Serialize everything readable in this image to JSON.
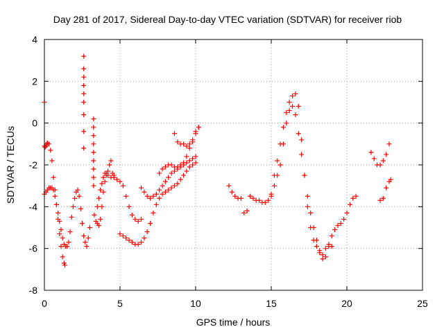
{
  "chart_data": {
    "type": "scatter",
    "title": "Day 281 of 2017, Sidereal Day-to-day VTEC variation (SDTVAR) for receiver riob",
    "xlabel": "GPS time / hours",
    "ylabel": "SDTVAR / TECUs",
    "xlim": [
      0,
      25
    ],
    "ylim": [
      -8,
      4
    ],
    "xticks": [
      0,
      5,
      10,
      15,
      20,
      25
    ],
    "yticks": [
      -8,
      -6,
      -4,
      -2,
      0,
      2,
      4
    ],
    "xtick_labels": [
      "0",
      "5",
      "10",
      "15",
      "20",
      "25"
    ],
    "ytick_labels": [
      "-8",
      "-6",
      "-4",
      "-2",
      "0",
      "2",
      "4"
    ],
    "grid": true,
    "marker": "+",
    "marker_color": "#ff0000",
    "series": [
      {
        "name": "SDTVAR",
        "x": [
          0.0,
          0.05,
          0.1,
          0.15,
          0.2,
          0.3,
          0.4,
          0.5,
          0.6,
          0.7,
          0.8,
          0.9,
          1.0,
          1.1,
          1.2,
          1.3,
          1.35,
          0.0,
          0.1,
          0.2,
          0.3,
          0.4,
          0.5,
          0.6,
          0.7,
          0.8,
          0.9,
          1.0,
          1.1,
          1.2,
          1.3,
          1.4,
          1.5,
          1.6,
          1.7,
          1.8,
          1.9,
          2.0,
          2.1,
          2.2,
          2.3,
          2.4,
          2.5,
          2.6,
          2.7,
          2.8,
          2.9,
          3.0,
          0.0,
          2.6,
          2.6,
          2.6,
          2.6,
          2.6,
          2.6,
          2.6,
          2.6,
          2.6,
          3.25,
          3.25,
          3.25,
          3.25,
          3.25,
          3.25,
          3.25,
          3.25,
          3.25,
          3.3,
          3.4,
          3.5,
          3.6,
          3.7,
          3.8,
          3.9,
          4.0,
          4.1,
          4.2,
          4.3,
          4.4,
          4.5,
          4.6,
          3.5,
          3.6,
          3.7,
          3.8,
          3.9,
          4.0,
          4.1,
          4.2,
          4.4,
          4.6,
          4.8,
          5.0,
          5.2,
          5.4,
          5.6,
          5.8,
          6.0,
          6.2,
          6.4,
          5.0,
          5.2,
          5.4,
          5.6,
          5.8,
          6.0,
          6.2,
          6.4,
          6.6,
          6.8,
          7.0,
          7.2,
          7.4,
          7.6,
          7.8,
          8.0,
          8.2,
          8.4,
          8.6,
          8.8,
          9.0,
          9.2,
          9.4,
          9.6,
          9.8,
          10.0,
          6.4,
          6.6,
          6.8,
          7.0,
          7.2,
          7.4,
          7.6,
          7.8,
          8.0,
          8.2,
          8.4,
          8.6,
          8.8,
          9.0,
          9.2,
          9.4,
          9.6,
          9.8,
          10.0,
          7.6,
          7.8,
          8.0,
          8.2,
          8.4,
          8.6,
          8.8,
          9.0,
          9.2,
          9.4,
          9.6,
          9.8,
          10.0,
          10.2,
          8.6,
          8.8,
          9.0,
          9.2,
          9.4,
          9.6,
          9.8,
          10.0,
          10.2,
          12.2,
          12.4,
          12.6,
          12.8,
          13.0,
          13.2,
          13.4,
          13.6,
          13.8,
          14.0,
          14.2,
          14.4,
          14.6,
          14.8,
          15.0,
          15.2,
          15.4,
          15.6,
          15.8,
          16.0,
          16.2,
          16.4,
          16.6,
          16.8,
          17.0,
          17.2,
          17.4,
          17.6,
          17.8,
          18.0,
          18.2,
          18.4,
          18.6,
          18.8,
          19.0,
          15.0,
          15.2,
          15.4,
          15.6,
          15.8,
          16.0,
          16.2,
          16.4,
          16.6,
          16.8,
          17.0,
          17.2,
          17.4,
          17.6,
          17.8,
          18.0,
          18.2,
          18.4,
          18.6,
          18.8,
          19.0,
          19.2,
          19.4,
          19.6,
          19.8,
          20.0,
          20.2,
          20.4,
          20.6,
          21.6,
          21.8,
          22.0,
          22.2,
          22.4,
          22.6,
          22.8,
          22.2,
          22.4,
          22.6,
          22.8,
          22.9
        ],
        "y": [
          -1.1,
          -1.15,
          -1.1,
          -1.0,
          -0.95,
          -1.0,
          -1.3,
          -1.8,
          -2.6,
          -3.2,
          -3.9,
          -4.6,
          -5.3,
          -5.9,
          -6.4,
          -6.7,
          -6.8,
          -3.4,
          -3.3,
          -3.2,
          -3.1,
          -3.1,
          -3.1,
          -3.2,
          -3.5,
          -3.9,
          -4.3,
          -4.7,
          -5.1,
          -5.5,
          -5.8,
          -5.9,
          -5.9,
          -5.7,
          -5.2,
          -4.5,
          -4.0,
          -3.6,
          -3.3,
          -3.2,
          -3.5,
          -4.1,
          -4.8,
          -5.4,
          -5.7,
          -5.9,
          -5.5,
          -5.0,
          1.0,
          3.2,
          2.6,
          2.2,
          1.8,
          1.4,
          1.0,
          0.4,
          -0.4,
          -1.2,
          0.2,
          -0.2,
          -0.6,
          -1.0,
          -1.4,
          -1.8,
          -2.2,
          -2.6,
          -3.0,
          -4.4,
          -4.7,
          -4.8,
          -4.9,
          -4.6,
          -4.0,
          -3.3,
          -2.8,
          -2.5,
          -2.3,
          -2.0,
          -1.8,
          -2.4,
          -2.5,
          -4.0,
          -3.6,
          -3.2,
          -2.9,
          -2.6,
          -2.4,
          -2.4,
          -2.5,
          -2.6,
          -2.6,
          -2.7,
          -2.8,
          -3.0,
          -3.5,
          -4.0,
          -4.4,
          -4.6,
          -4.7,
          -4.6,
          -5.3,
          -5.4,
          -5.5,
          -5.6,
          -5.7,
          -5.8,
          -5.8,
          -5.7,
          -5.5,
          -5.2,
          -4.8,
          -4.3,
          -3.9,
          -3.6,
          -3.4,
          -3.3,
          -3.2,
          -3.1,
          -3.0,
          -2.9,
          -2.7,
          -2.5,
          -2.3,
          -2.1,
          -2.0,
          -1.9,
          -3.1,
          -3.3,
          -3.5,
          -3.6,
          -3.5,
          -3.4,
          -3.2,
          -3.0,
          -2.8,
          -2.6,
          -2.4,
          -2.3,
          -2.2,
          -2.1,
          -2.0,
          -1.9,
          -1.8,
          -1.7,
          -1.6,
          -2.4,
          -2.2,
          -2.1,
          -2.0,
          -2.0,
          -2.1,
          -2.1,
          -2.0,
          -1.9,
          -1.6,
          -1.2,
          -0.8,
          -0.4,
          -0.2,
          -0.5,
          -0.9,
          -1.0,
          -1.0,
          -1.1,
          -1.0,
          -0.9,
          -0.5,
          -0.2,
          -3.0,
          -3.3,
          -3.5,
          -3.6,
          -3.6,
          -4.3,
          -4.2,
          -3.5,
          -3.6,
          -3.7,
          -3.7,
          -3.8,
          -3.8,
          -3.7,
          -3.5,
          -2.5,
          -1.8,
          -1.0,
          -0.2,
          0.5,
          1.0,
          1.3,
          1.4,
          0.8,
          -0.8,
          -2.5,
          -4.0,
          -5.0,
          -5.6,
          -5.9,
          -6.2,
          -6.3,
          -6.0,
          -5.8,
          -5.9,
          -3.4,
          -3.0,
          -2.5,
          -2.0,
          -1.0,
          0.0,
          0.6,
          0.8,
          0.4,
          -0.5,
          -1.5,
          -2.5,
          -3.5,
          -4.3,
          -5.0,
          -5.6,
          -6.1,
          -6.5,
          -6.4,
          -5.9,
          -5.4,
          -5.1,
          -4.9,
          -4.8,
          -4.6,
          -4.3,
          -3.9,
          -3.6,
          -3.5,
          -1.4,
          -1.7,
          -2.0,
          -2.0,
          -1.8,
          -1.5,
          -1.0,
          -3.7,
          -3.6,
          -3.1,
          -2.8,
          -2.7
        ]
      }
    ]
  }
}
